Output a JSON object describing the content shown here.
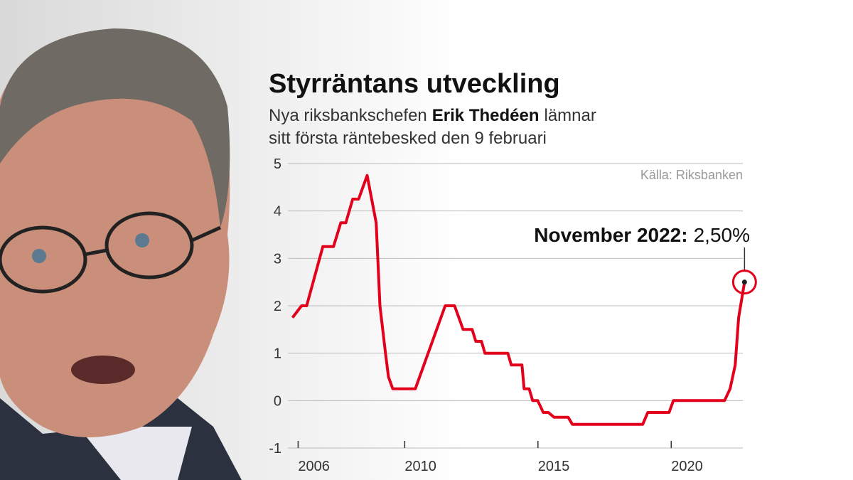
{
  "chart_data": {
    "type": "line",
    "title": "Styrräntans utveckling",
    "subtitle_lines": [
      {
        "before": "Nya riksbankschefen",
        "bold": "Erik Thedéen",
        "after": "lämnar"
      },
      {
        "before": "sitt första räntebesked den 9 februari"
      }
    ],
    "source": "Källa: Riksbanken",
    "annotation": {
      "text": "November 2022:",
      "value_label": "2,50%"
    },
    "color": "#e3001b",
    "x": [
      2005.79,
      2006.13,
      2006.32,
      2006.93,
      2007.33,
      2007.6,
      2007.79,
      2008.05,
      2008.27,
      2008.59,
      2008.93,
      2009.07,
      2009.28,
      2009.39,
      2009.55,
      2010.4,
      2011.52,
      2011.87,
      2012.19,
      2012.53,
      2012.67,
      2012.88,
      2013.01,
      2013.87,
      2014.0,
      2014.4,
      2014.48,
      2014.67,
      2014.8,
      2014.99,
      2015.2,
      2015.39,
      2015.6,
      2016.13,
      2016.29,
      2018.93,
      2019.12,
      2019.92,
      2020.08,
      2022.0,
      2022.21,
      2022.4,
      2022.53,
      2022.75
    ],
    "values": [
      1.75,
      2.0,
      2.0,
      3.25,
      3.25,
      3.75,
      3.75,
      4.25,
      4.25,
      4.75,
      3.75,
      2.0,
      1.0,
      0.5,
      0.25,
      0.25,
      2.0,
      2.0,
      1.5,
      1.5,
      1.25,
      1.25,
      1.0,
      1.0,
      0.75,
      0.75,
      0.25,
      0.25,
      0.0,
      0.0,
      -0.25,
      -0.25,
      -0.35,
      -0.35,
      -0.5,
      -0.5,
      -0.25,
      -0.25,
      0.0,
      0.0,
      0.25,
      0.75,
      1.75,
      2.5
    ],
    "xlim": [
      2005.75,
      2022.9
    ],
    "xticks": [
      2006,
      2010,
      2015,
      2020
    ],
    "ylim": [
      -1,
      5
    ],
    "yticks": [
      -1,
      0,
      1,
      2,
      3,
      4,
      5
    ],
    "grid": true
  }
}
